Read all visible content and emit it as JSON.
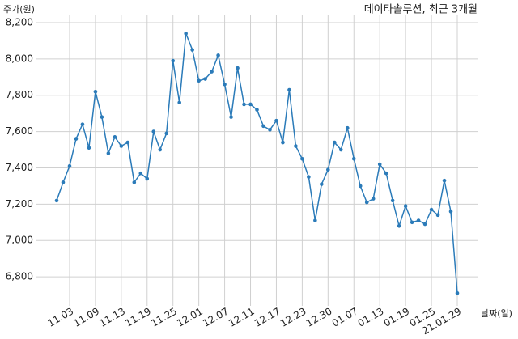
{
  "chart_data": {
    "type": "line",
    "title": "데이타솔루션, 최근 3개월",
    "ylabel": "주가(원)",
    "xlabel": "날짜(일)",
    "categories": [
      null,
      null,
      "11.03",
      null,
      null,
      null,
      "11.09",
      null,
      null,
      null,
      "11.13",
      null,
      null,
      null,
      "11.19",
      null,
      null,
      null,
      "11.25",
      null,
      null,
      null,
      "12.01",
      null,
      null,
      null,
      "12.07",
      null,
      null,
      null,
      "12.11",
      null,
      null,
      null,
      "12.17",
      null,
      null,
      null,
      "12.23",
      null,
      null,
      null,
      "12.30",
      null,
      null,
      null,
      "01.07",
      null,
      null,
      null,
      "01.13",
      null,
      null,
      null,
      "01.19",
      null,
      null,
      null,
      "01.25",
      null,
      null,
      null,
      "21.01.29"
    ],
    "series": [
      {
        "color": "#2b7bb9",
        "values": [
          7220,
          7320,
          7410,
          7560,
          7640,
          7510,
          7820,
          7680,
          7480,
          7570,
          7520,
          7540,
          7320,
          7370,
          7340,
          7600,
          7500,
          7590,
          7990,
          7760,
          8140,
          8050,
          7880,
          7890,
          7930,
          8020,
          7860,
          7680,
          7950,
          7750,
          7750,
          7720,
          7630,
          7610,
          7660,
          7540,
          7830,
          7520,
          7450,
          7350,
          7110,
          7310,
          7390,
          7540,
          7500,
          7620,
          7450,
          7300,
          7210,
          7230,
          7420,
          7370,
          7220,
          7080,
          7190,
          7100,
          7110,
          7090,
          7170,
          7140,
          7330,
          7160,
          6710
        ]
      }
    ],
    "ylim": [
      6640,
      8240
    ],
    "yticks": [
      {
        "value": 6800,
        "label": "6,800"
      },
      {
        "value": 7000,
        "label": "7,000"
      },
      {
        "value": 7200,
        "label": "7,200"
      },
      {
        "value": 7400,
        "label": "7,400"
      },
      {
        "value": 7600,
        "label": "7,600"
      },
      {
        "value": 7800,
        "label": "7,800"
      },
      {
        "value": 8000,
        "label": "8,000"
      },
      {
        "value": 8200,
        "label": "8,200"
      }
    ],
    "grid": true
  }
}
